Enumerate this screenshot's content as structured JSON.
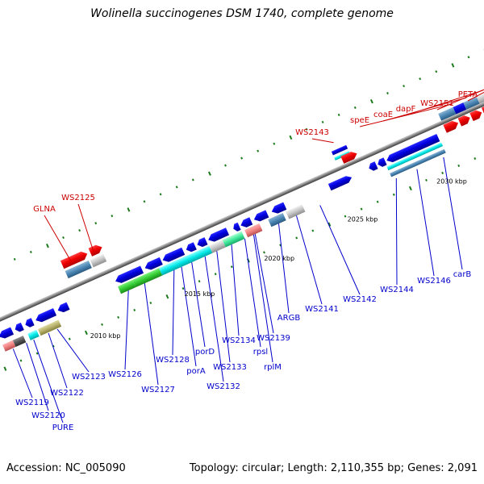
{
  "title": "Wolinella succinogenes DSM 1740, complete genome",
  "footer": {
    "accession": "Accession: NC_005090",
    "summary": "Topology: circular; Length: 2,110,355 bp; Genes: 2,091"
  },
  "scale_labels": [
    {
      "id": "tick-2010",
      "text": "2010 kbp"
    },
    {
      "id": "tick-2015",
      "text": "2015 kbp"
    },
    {
      "id": "tick-2020",
      "text": "2020 kbp"
    },
    {
      "id": "tick-2025",
      "text": "2025 kbp"
    },
    {
      "id": "tick-2030",
      "text": "2030 kbp"
    }
  ],
  "gene_labels_top": [
    {
      "id": "glna",
      "text": "GLNA"
    },
    {
      "id": "ws2125",
      "text": "WS2125"
    },
    {
      "id": "ws2143",
      "text": "WS2143"
    },
    {
      "id": "spee",
      "text": "speE"
    },
    {
      "id": "coae",
      "text": "coaE"
    },
    {
      "id": "dapf",
      "text": "dapF"
    },
    {
      "id": "ws2151",
      "text": "WS2151"
    },
    {
      "id": "peta",
      "text": "PETA"
    }
  ],
  "gene_labels_bottom": [
    {
      "id": "ws2119",
      "text": "WS2119"
    },
    {
      "id": "ws2120",
      "text": "WS2120"
    },
    {
      "id": "pure",
      "text": "PURE"
    },
    {
      "id": "ws2122",
      "text": "WS2122"
    },
    {
      "id": "ws2123",
      "text": "WS2123"
    },
    {
      "id": "ws2126",
      "text": "WS2126"
    },
    {
      "id": "ws2127",
      "text": "WS2127"
    },
    {
      "id": "ws2128",
      "text": "WS2128"
    },
    {
      "id": "pora",
      "text": "porA"
    },
    {
      "id": "pord",
      "text": "porD"
    },
    {
      "id": "ws2132",
      "text": "WS2132"
    },
    {
      "id": "ws2133",
      "text": "WS2133"
    },
    {
      "id": "ws2134",
      "text": "WS2134"
    },
    {
      "id": "rpsl",
      "text": "rpsl"
    },
    {
      "id": "rplm",
      "text": "rplM"
    },
    {
      "id": "ws2139",
      "text": "WS2139"
    },
    {
      "id": "argb",
      "text": "ARGB"
    },
    {
      "id": "ws2141",
      "text": "WS2141"
    },
    {
      "id": "ws2142",
      "text": "WS2142"
    },
    {
      "id": "ws2144",
      "text": "WS2144"
    },
    {
      "id": "ws2146",
      "text": "WS2146"
    },
    {
      "id": "carb",
      "text": "carB"
    }
  ],
  "colors": {
    "backbone": "#888888",
    "cds_forward_label": "#cc0000",
    "cds_reverse_label": "#0000cc",
    "tick": "#1a7a1a",
    "forward_gene": "#ff0000",
    "reverse_gene": "#0000ee",
    "rna_gene": "#00e0e0",
    "orf_bar": "#4a86b4",
    "hypothetical": "#c0c0c0",
    "green_gene": "#33cc33",
    "olive_gene": "#b5b06a",
    "salmon_gene": "#f08080"
  }
}
